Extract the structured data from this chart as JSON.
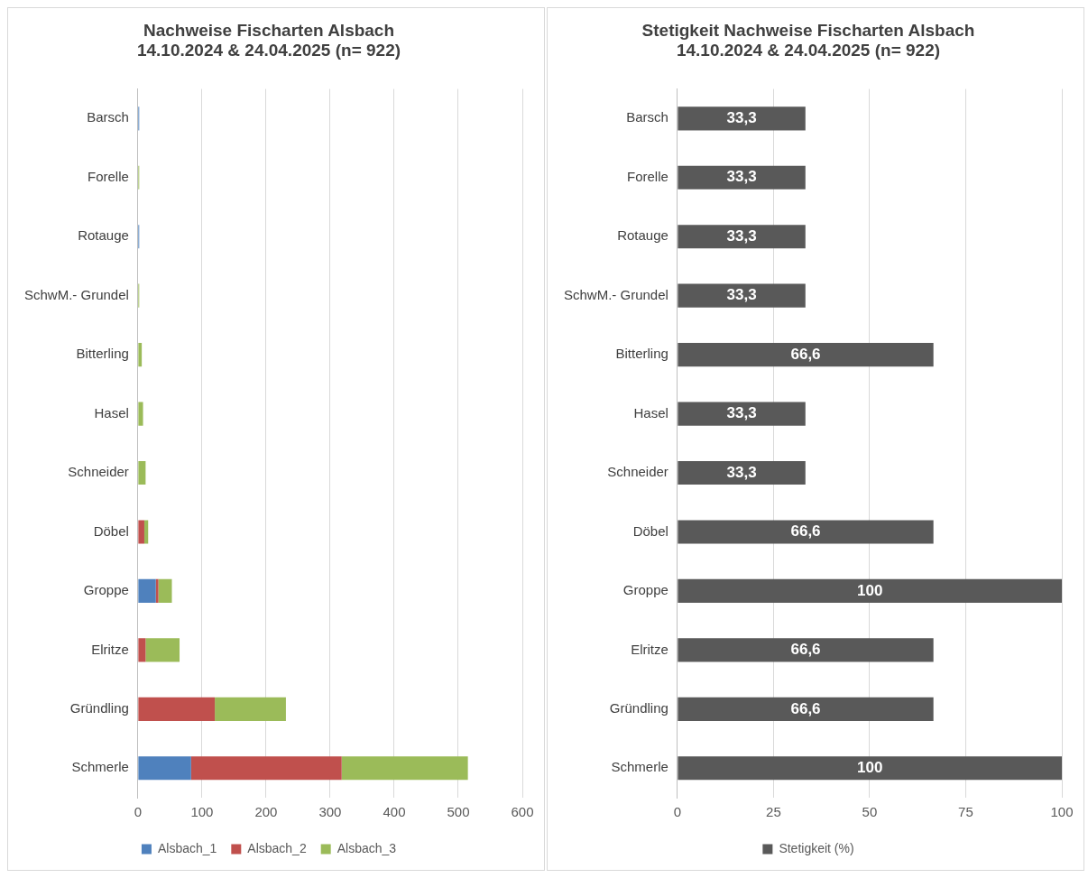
{
  "chart_data": [
    {
      "type": "bar",
      "orientation": "horizontal",
      "stacked": true,
      "title": "Nachweise Fischarten Alsbach",
      "subtitle": "14.10.2024 & 24.04.2025 (n= 922)",
      "categories": [
        "Barsch",
        "Forelle",
        "Rotauge",
        "SchwM.- Grundel",
        "Bitterling",
        "Hasel",
        "Schneider",
        "Döbel",
        "Groppe",
        "Elritze",
        "Gründling",
        "Schmerle"
      ],
      "series": [
        {
          "name": "Alsbach_1",
          "color": "#4f81bd",
          "values": [
            2,
            0,
            2,
            0,
            0,
            0,
            0,
            0,
            28,
            0,
            0,
            83
          ]
        },
        {
          "name": "Alsbach_2",
          "color": "#c0504d",
          "values": [
            0,
            0,
            0,
            0,
            0,
            0,
            0,
            10,
            4,
            12,
            120,
            235
          ]
        },
        {
          "name": "Alsbach_3",
          "color": "#9bbb59",
          "values": [
            0,
            2,
            0,
            2,
            6,
            8,
            12,
            6,
            21,
            53,
            111,
            197
          ]
        }
      ],
      "xlim": [
        0,
        600
      ],
      "xticks": [
        0,
        100,
        200,
        300,
        400,
        500,
        600
      ],
      "grid": "x",
      "legend": "bottom"
    },
    {
      "type": "bar",
      "orientation": "horizontal",
      "title": "Stetigkeit Nachweise Fischarten Alsbach",
      "subtitle": "14.10.2024 & 24.04.2025 (n= 922)",
      "categories": [
        "Barsch",
        "Forelle",
        "Rotauge",
        "SchwM.- Grundel",
        "Bitterling",
        "Hasel",
        "Schneider",
        "Döbel",
        "Groppe",
        "Elritze",
        "Gründling",
        "Schmerle"
      ],
      "series": [
        {
          "name": "Stetigkeit (%)",
          "color": "#595959",
          "values": [
            33.3,
            33.3,
            33.3,
            33.3,
            66.6,
            33.3,
            33.3,
            66.6,
            100,
            66.6,
            66.6,
            100
          ],
          "value_labels": [
            "33,3",
            "33,3",
            "33,3",
            "33,3",
            "66,6",
            "33,3",
            "33,3",
            "66,6",
            "100",
            "66,6",
            "66,6",
            "100"
          ]
        }
      ],
      "xlim": [
        0,
        100
      ],
      "xticks": [
        0,
        25,
        50,
        75,
        100
      ],
      "grid": "x",
      "legend": "bottom"
    }
  ]
}
